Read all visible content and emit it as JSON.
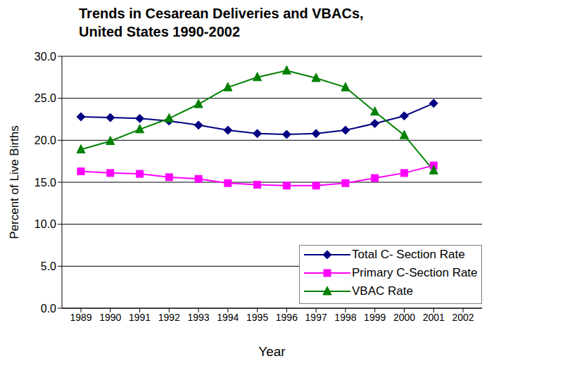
{
  "chart_data": {
    "type": "line",
    "title": "Trends in Cesarean Deliveries and VBACs, United States 1990-2002",
    "x_label": "Year",
    "y_label": "Percent of Live Births",
    "categories": [
      "1989",
      "1990",
      "1991",
      "1992",
      "1993",
      "1994",
      "1995",
      "1996",
      "1997",
      "1998",
      "1999",
      "2000",
      "2001",
      "2002"
    ],
    "series": [
      {
        "name": "Total C- Section Rate",
        "color": "#000080",
        "marker": "diamond",
        "values": [
          22.8,
          22.7,
          22.6,
          22.3,
          21.8,
          21.2,
          20.8,
          20.7,
          20.8,
          21.2,
          22.0,
          22.9,
          24.4,
          null
        ]
      },
      {
        "name": "Primary C-Section Rate",
        "color": "#ff00ff",
        "marker": "square",
        "values": [
          16.3,
          16.1,
          16.0,
          15.6,
          15.4,
          14.9,
          14.7,
          14.6,
          14.6,
          14.9,
          15.5,
          16.1,
          17.0,
          null
        ]
      },
      {
        "name": "VBAC Rate",
        "color": "#008000",
        "marker": "triangle",
        "values": [
          18.9,
          19.9,
          21.3,
          22.6,
          24.3,
          26.3,
          27.5,
          28.3,
          27.4,
          26.3,
          23.4,
          20.6,
          16.4,
          null
        ]
      }
    ],
    "ylim": [
      0,
      30
    ],
    "yticks": [
      {
        "value": 0,
        "label": "0.0"
      },
      {
        "value": 5,
        "label": "5.0"
      },
      {
        "value": 10,
        "label": "10.0"
      },
      {
        "value": 15,
        "label": "15.0"
      },
      {
        "value": 20,
        "label": "20.0"
      },
      {
        "value": 25,
        "label": "25.0"
      },
      {
        "value": 30,
        "label": "30.0"
      }
    ],
    "grid": true,
    "legend": "lower right"
  }
}
